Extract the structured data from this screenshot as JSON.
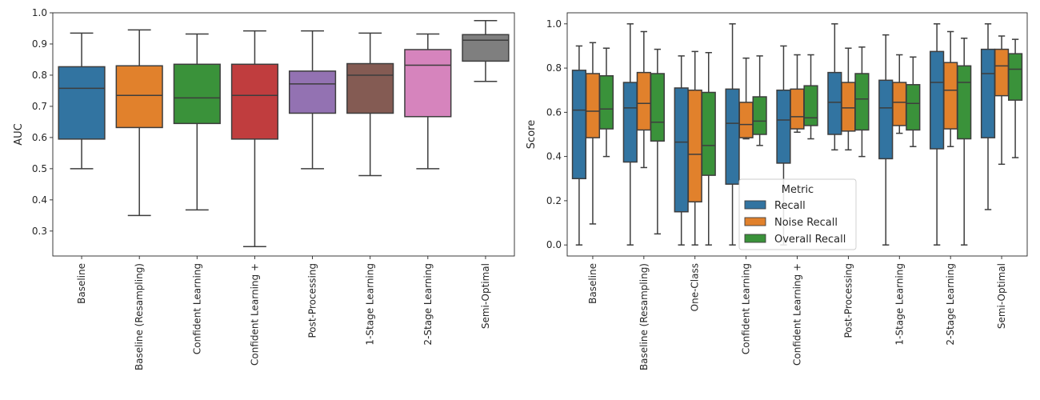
{
  "chart_data": [
    {
      "type": "box",
      "ylabel": "AUC",
      "ylim": [
        0.22,
        1.0
      ],
      "yticks": [
        0.3,
        0.4,
        0.5,
        0.6,
        0.7,
        0.8,
        0.9,
        1.0
      ],
      "ytick_labels": [
        "0.3",
        "0.4",
        "0.5",
        "0.6",
        "0.7",
        "0.8",
        "0.9",
        "1.0"
      ],
      "categories": [
        "Baseline",
        "Baseline (Resampling)",
        "Confident Learning",
        "Confident Learning +",
        "Post-Processing",
        "1-Stage Learning",
        "2-Stage Learning",
        "Semi-Optimal"
      ],
      "colors": [
        "#3274a1",
        "#e1812c",
        "#3a923a",
        "#c03d3e",
        "#9372b2",
        "#845b53",
        "#d684bd",
        "#7f7f7f"
      ],
      "boxes": [
        {
          "min": 0.5,
          "q1": 0.595,
          "median": 0.758,
          "q3": 0.827,
          "max": 0.935
        },
        {
          "min": 0.35,
          "q1": 0.632,
          "median": 0.735,
          "q3": 0.83,
          "max": 0.945
        },
        {
          "min": 0.368,
          "q1": 0.645,
          "median": 0.727,
          "q3": 0.835,
          "max": 0.932
        },
        {
          "min": 0.25,
          "q1": 0.595,
          "median": 0.735,
          "q3": 0.835,
          "max": 0.942
        },
        {
          "min": 0.5,
          "q1": 0.678,
          "median": 0.772,
          "q3": 0.813,
          "max": 0.942
        },
        {
          "min": 0.478,
          "q1": 0.678,
          "median": 0.8,
          "q3": 0.837,
          "max": 0.935
        },
        {
          "min": 0.5,
          "q1": 0.667,
          "median": 0.832,
          "q3": 0.882,
          "max": 0.932
        },
        {
          "min": 0.78,
          "q1": 0.845,
          "median": 0.912,
          "q3": 0.93,
          "max": 0.975
        }
      ]
    },
    {
      "type": "box",
      "ylabel": "Score",
      "ylim": [
        -0.05,
        1.05
      ],
      "yticks": [
        0.0,
        0.2,
        0.4,
        0.6,
        0.8,
        1.0
      ],
      "ytick_labels": [
        "0.0",
        "0.2",
        "0.4",
        "0.6",
        "0.8",
        "1.0"
      ],
      "categories": [
        "Baseline",
        "Baseline (Resampling)",
        "One-Class",
        "Confident Learning",
        "Confident Learning +",
        "Post-Processing",
        "1-Stage Learning",
        "2-Stage Learning",
        "Semi-Optimal"
      ],
      "legend": {
        "title": "Metric",
        "location": "lower-center"
      },
      "series": [
        {
          "name": "Recall",
          "color": "#3274a1",
          "boxes": [
            {
              "min": 0.0,
              "q1": 0.3,
              "median": 0.61,
              "q3": 0.79,
              "max": 0.9
            },
            {
              "min": 0.0,
              "q1": 0.375,
              "median": 0.62,
              "q3": 0.735,
              "max": 1.0
            },
            {
              "min": 0.0,
              "q1": 0.15,
              "median": 0.465,
              "q3": 0.71,
              "max": 0.855
            },
            {
              "min": 0.0,
              "q1": 0.275,
              "median": 0.55,
              "q3": 0.705,
              "max": 1.0
            },
            {
              "min": 0.0,
              "q1": 0.37,
              "median": 0.565,
              "q3": 0.7,
              "max": 0.9
            },
            {
              "min": 0.43,
              "q1": 0.5,
              "median": 0.645,
              "q3": 0.78,
              "max": 1.0
            },
            {
              "min": 0.0,
              "q1": 0.39,
              "median": 0.62,
              "q3": 0.745,
              "max": 0.95
            },
            {
              "min": 0.0,
              "q1": 0.435,
              "median": 0.735,
              "q3": 0.875,
              "max": 1.0
            },
            {
              "min": 0.16,
              "q1": 0.485,
              "median": 0.775,
              "q3": 0.885,
              "max": 1.0
            }
          ]
        },
        {
          "name": "Noise Recall",
          "color": "#e1812c",
          "boxes": [
            {
              "min": 0.095,
              "q1": 0.485,
              "median": 0.605,
              "q3": 0.775,
              "max": 0.915
            },
            {
              "min": 0.35,
              "q1": 0.52,
              "median": 0.64,
              "q3": 0.78,
              "max": 0.965
            },
            {
              "min": 0.0,
              "q1": 0.195,
              "median": 0.41,
              "q3": 0.7,
              "max": 0.875
            },
            {
              "min": 0.48,
              "q1": 0.485,
              "median": 0.545,
              "q3": 0.645,
              "max": 0.845
            },
            {
              "min": 0.51,
              "q1": 0.525,
              "median": 0.58,
              "q3": 0.705,
              "max": 0.86
            },
            {
              "min": 0.43,
              "q1": 0.515,
              "median": 0.62,
              "q3": 0.735,
              "max": 0.89
            },
            {
              "min": 0.505,
              "q1": 0.54,
              "median": 0.645,
              "q3": 0.735,
              "max": 0.86
            },
            {
              "min": 0.445,
              "q1": 0.525,
              "median": 0.7,
              "q3": 0.825,
              "max": 0.965
            },
            {
              "min": 0.365,
              "q1": 0.675,
              "median": 0.81,
              "q3": 0.885,
              "max": 0.945
            }
          ]
        },
        {
          "name": "Overall Recall",
          "color": "#3a923a",
          "boxes": [
            {
              "min": 0.4,
              "q1": 0.525,
              "median": 0.615,
              "q3": 0.765,
              "max": 0.89
            },
            {
              "min": 0.05,
              "q1": 0.47,
              "median": 0.555,
              "q3": 0.775,
              "max": 0.885
            },
            {
              "min": 0.0,
              "q1": 0.315,
              "median": 0.45,
              "q3": 0.69,
              "max": 0.87
            },
            {
              "min": 0.45,
              "q1": 0.5,
              "median": 0.56,
              "q3": 0.67,
              "max": 0.855
            },
            {
              "min": 0.48,
              "q1": 0.54,
              "median": 0.575,
              "q3": 0.72,
              "max": 0.86
            },
            {
              "min": 0.4,
              "q1": 0.52,
              "median": 0.66,
              "q3": 0.775,
              "max": 0.895
            },
            {
              "min": 0.445,
              "q1": 0.52,
              "median": 0.64,
              "q3": 0.725,
              "max": 0.85
            },
            {
              "min": 0.0,
              "q1": 0.48,
              "median": 0.735,
              "q3": 0.81,
              "max": 0.935
            },
            {
              "min": 0.395,
              "q1": 0.655,
              "median": 0.795,
              "q3": 0.865,
              "max": 0.93
            }
          ]
        }
      ]
    }
  ]
}
